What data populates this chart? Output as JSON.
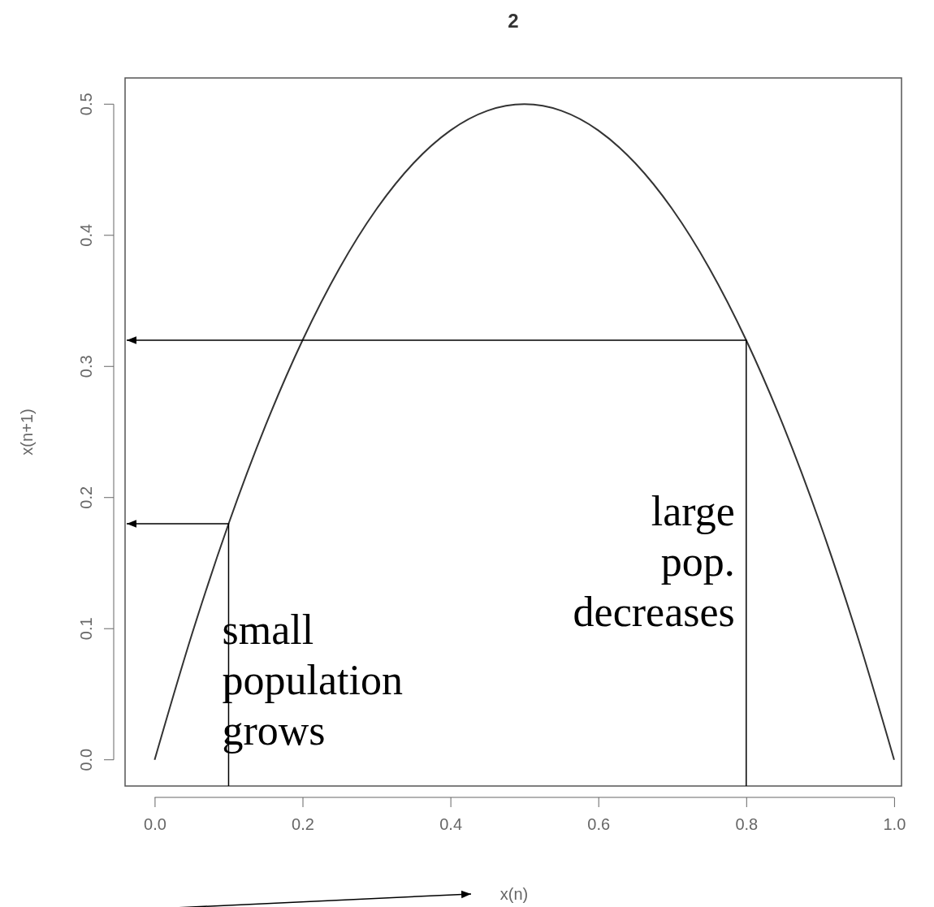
{
  "chart_data": {
    "type": "line",
    "title": "2",
    "xlabel": "x(n)",
    "ylabel": "x(n+1)",
    "x": [
      0,
      0.05,
      0.1,
      0.15,
      0.2,
      0.25,
      0.3,
      0.35,
      0.4,
      0.45,
      0.5,
      0.55,
      0.6,
      0.65,
      0.7,
      0.75,
      0.8,
      0.85,
      0.9,
      0.95,
      1
    ],
    "series": [
      {
        "color": "#333333",
        "values": [
          0,
          0.095,
          0.18,
          0.255,
          0.32,
          0.375,
          0.42,
          0.455,
          0.48,
          0.495,
          0.5,
          0.495,
          0.48,
          0.455,
          0.42,
          0.375,
          0.32,
          0.255,
          0.18,
          0.095,
          0
        ]
      }
    ],
    "xlim": [
      -0.04,
      1.01
    ],
    "ylim": [
      -0.02,
      0.52
    ],
    "xticks": [
      {
        "value": 0,
        "label": "0.0"
      },
      0.2,
      0.4,
      0.6,
      0.8,
      {
        "value": 1,
        "label": "1.0"
      }
    ],
    "yticks": [
      {
        "value": 0,
        "label": "0.0"
      },
      0.1,
      0.2,
      0.3,
      0.4,
      0.5
    ],
    "grid": false,
    "marker": "none",
    "line_style": "solid",
    "ref_lines": [
      {
        "axis": "x",
        "value": 0.1
      },
      {
        "axis": "x",
        "value": 0.8
      }
    ],
    "annotations": [
      "small population grows",
      "large pop. decreases"
    ]
  }
}
